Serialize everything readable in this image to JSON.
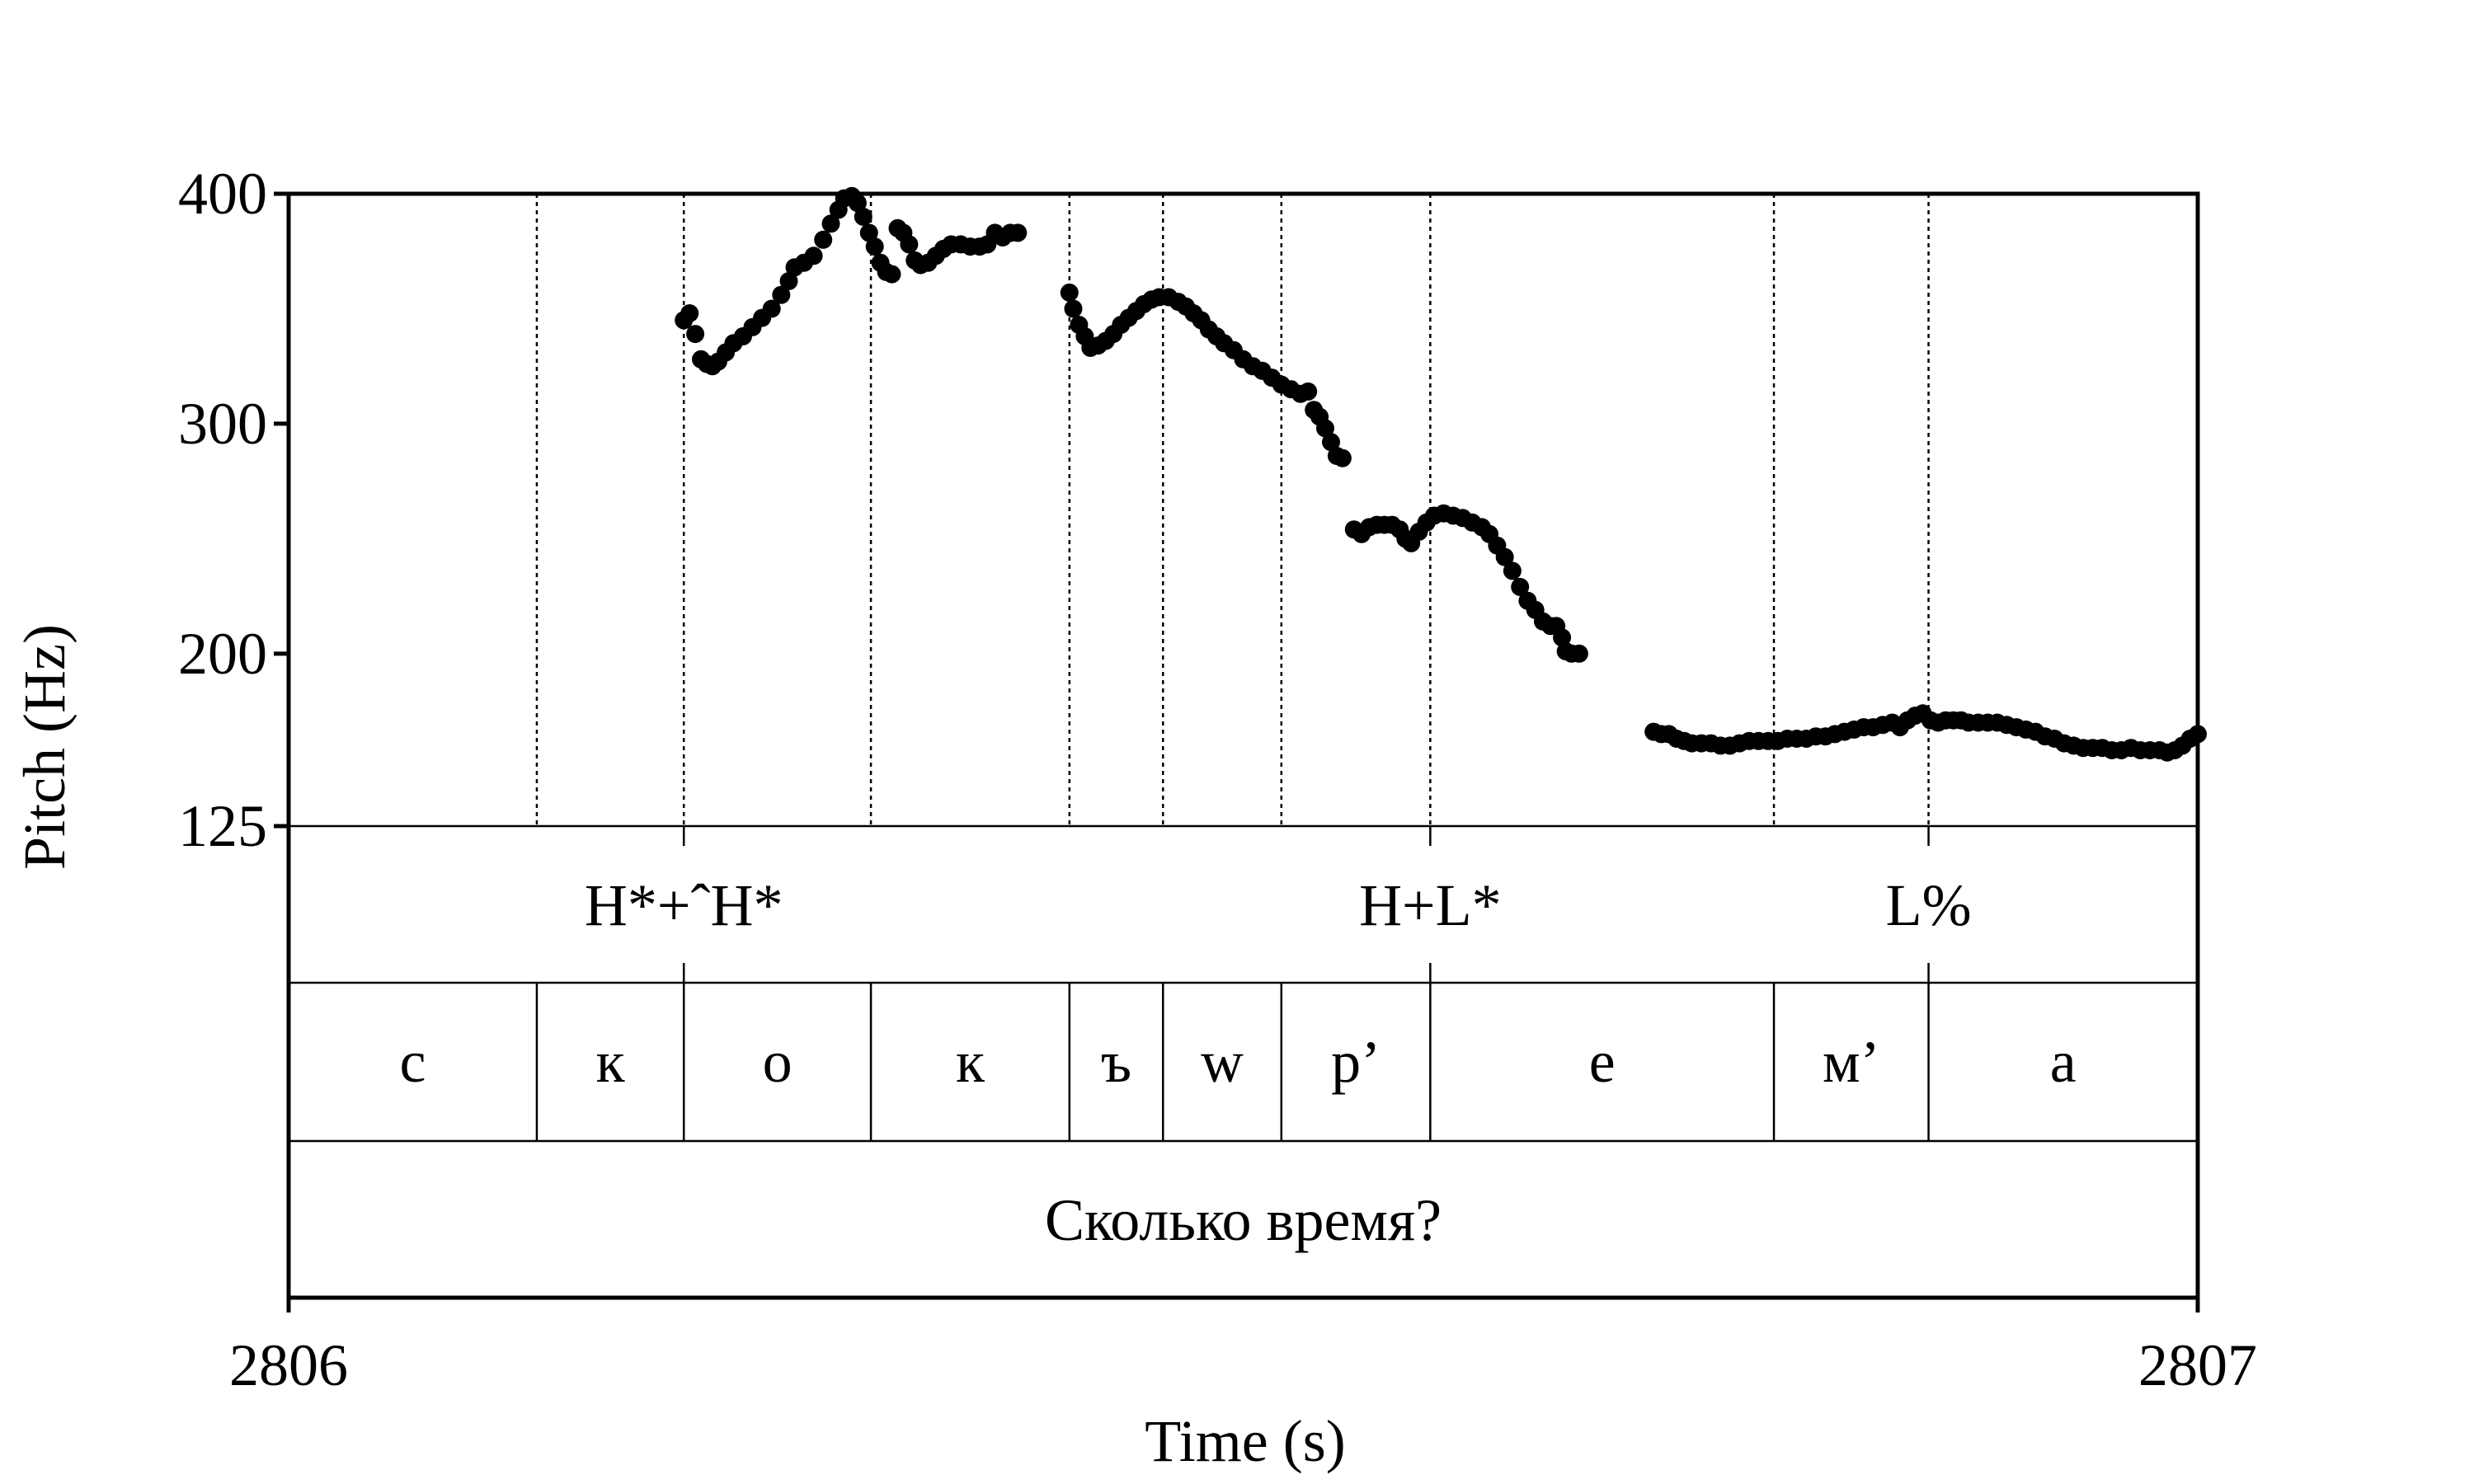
{
  "chart_data": {
    "type": "scatter",
    "xlabel": "Time (s)",
    "ylabel": "Pitch (Hz)",
    "xlim": [
      2806,
      2807
    ],
    "ylim": [
      125,
      400
    ],
    "x_ticks": [
      "2806",
      "2807"
    ],
    "y_ticks": [
      {
        "value": 400,
        "label": "400"
      },
      {
        "value": 300,
        "label": "300"
      },
      {
        "value": 200,
        "label": "200"
      },
      {
        "value": 125,
        "label": "125"
      }
    ],
    "boundaries": [
      2806.13,
      2806.207,
      2806.305,
      2806.409,
      2806.458,
      2806.52,
      2806.598,
      2806.778,
      2806.859
    ],
    "tones": [
      {
        "text": "H*+ˆH*",
        "x": 2806.207
      },
      {
        "text": "H+L*",
        "x": 2806.598
      },
      {
        "text": "L%",
        "x": 2806.859
      }
    ],
    "segments": [
      {
        "text": "с",
        "start": 2806.0,
        "end": 2806.13
      },
      {
        "text": "к",
        "start": 2806.13,
        "end": 2806.207
      },
      {
        "text": "о",
        "start": 2806.207,
        "end": 2806.305
      },
      {
        "text": "к",
        "start": 2806.305,
        "end": 2806.409
      },
      {
        "text": "ъ",
        "start": 2806.409,
        "end": 2806.458
      },
      {
        "text": "w",
        "start": 2806.458,
        "end": 2806.52
      },
      {
        "text": "р’",
        "start": 2806.52,
        "end": 2806.598
      },
      {
        "text": "е",
        "start": 2806.598,
        "end": 2806.778
      },
      {
        "text": "м’",
        "start": 2806.778,
        "end": 2806.859
      },
      {
        "text": "а",
        "start": 2806.859,
        "end": 2807.0
      }
    ],
    "utterance": "Сколько время?",
    "series": [
      {
        "points": [
          [
            2806.207,
            345
          ],
          [
            2806.21,
            348
          ],
          [
            2806.213,
            339
          ],
          [
            2806.216,
            328
          ],
          [
            2806.219,
            326
          ],
          [
            2806.222,
            325
          ],
          [
            2806.225,
            327
          ],
          [
            2806.229,
            331
          ],
          [
            2806.233,
            335
          ],
          [
            2806.238,
            338
          ],
          [
            2806.243,
            342
          ],
          [
            2806.248,
            346
          ],
          [
            2806.253,
            350
          ],
          [
            2806.258,
            356
          ],
          [
            2806.262,
            362
          ],
          [
            2806.265,
            368
          ],
          [
            2806.27,
            370
          ],
          [
            2806.275,
            373
          ],
          [
            2806.28,
            380
          ],
          [
            2806.284,
            387
          ],
          [
            2806.288,
            393
          ],
          [
            2806.291,
            398
          ],
          [
            2806.295,
            399
          ],
          [
            2806.298,
            396
          ],
          [
            2806.301,
            390
          ],
          [
            2806.304,
            383
          ],
          [
            2806.307,
            377
          ],
          [
            2806.31,
            370
          ],
          [
            2806.313,
            366
          ],
          [
            2806.316,
            365
          ],
          [
            2806.319,
            385
          ],
          [
            2806.322,
            383
          ],
          [
            2806.325,
            378
          ],
          [
            2806.328,
            371
          ],
          [
            2806.331,
            369
          ],
          [
            2806.335,
            370
          ],
          [
            2806.339,
            373
          ],
          [
            2806.343,
            376
          ],
          [
            2806.347,
            378
          ],
          [
            2806.352,
            378
          ],
          [
            2806.357,
            377
          ],
          [
            2806.362,
            377
          ],
          [
            2806.366,
            378
          ],
          [
            2806.37,
            383
          ],
          [
            2806.374,
            381
          ],
          [
            2806.378,
            383
          ],
          [
            2806.382,
            383
          ]
        ]
      },
      {
        "points": [
          [
            2806.409,
            357
          ],
          [
            2806.411,
            350
          ],
          [
            2806.414,
            343
          ],
          [
            2806.417,
            338
          ],
          [
            2806.42,
            333
          ],
          [
            2806.424,
            334
          ],
          [
            2806.428,
            336
          ],
          [
            2806.432,
            339
          ],
          [
            2806.436,
            343
          ],
          [
            2806.44,
            346
          ],
          [
            2806.444,
            349
          ],
          [
            2806.448,
            352
          ],
          [
            2806.452,
            354
          ],
          [
            2806.456,
            355
          ],
          [
            2806.461,
            355
          ],
          [
            2806.466,
            353
          ],
          [
            2806.47,
            351
          ],
          [
            2806.474,
            348
          ],
          [
            2806.478,
            345
          ],
          [
            2806.482,
            341
          ],
          [
            2806.486,
            338
          ],
          [
            2806.49,
            335
          ],
          [
            2806.495,
            332
          ],
          [
            2806.5,
            328
          ],
          [
            2806.505,
            325
          ],
          [
            2806.51,
            323
          ],
          [
            2806.515,
            320
          ],
          [
            2806.52,
            317
          ],
          [
            2806.525,
            315
          ],
          [
            2806.53,
            313
          ],
          [
            2806.534,
            314
          ],
          [
            2806.537,
            306
          ],
          [
            2806.54,
            303
          ],
          [
            2806.543,
            298
          ],
          [
            2806.546,
            292
          ],
          [
            2806.549,
            286
          ],
          [
            2806.552,
            285
          ]
        ]
      },
      {
        "points": [
          [
            2806.558,
            254
          ],
          [
            2806.562,
            252
          ],
          [
            2806.566,
            255
          ],
          [
            2806.57,
            256
          ],
          [
            2806.574,
            256
          ],
          [
            2806.578,
            256
          ],
          [
            2806.582,
            254
          ],
          [
            2806.585,
            250
          ],
          [
            2806.588,
            248
          ],
          [
            2806.592,
            253
          ],
          [
            2806.596,
            257
          ],
          [
            2806.6,
            260
          ],
          [
            2806.605,
            261
          ],
          [
            2806.61,
            260
          ],
          [
            2806.615,
            259
          ],
          [
            2806.62,
            257
          ],
          [
            2806.625,
            255
          ],
          [
            2806.629,
            252
          ],
          [
            2806.633,
            247
          ],
          [
            2806.637,
            242
          ],
          [
            2806.641,
            236
          ],
          [
            2806.645,
            229
          ],
          [
            2806.649,
            223
          ],
          [
            2806.653,
            219
          ],
          [
            2806.657,
            214
          ],
          [
            2806.661,
            212
          ],
          [
            2806.664,
            212
          ],
          [
            2806.667,
            207
          ],
          [
            2806.669,
            201
          ],
          [
            2806.672,
            200
          ],
          [
            2806.676,
            200
          ]
        ]
      },
      {
        "points": [
          [
            2806.715,
            166
          ],
          [
            2806.719,
            165
          ],
          [
            2806.723,
            165
          ],
          [
            2806.727,
            163
          ],
          [
            2806.731,
            162
          ],
          [
            2806.735,
            161
          ],
          [
            2806.74,
            161
          ],
          [
            2806.745,
            161
          ],
          [
            2806.75,
            160
          ],
          [
            2806.755,
            160
          ],
          [
            2806.76,
            161
          ],
          [
            2806.765,
            162
          ],
          [
            2806.77,
            162
          ],
          [
            2806.775,
            162
          ],
          [
            2806.78,
            162
          ],
          [
            2806.785,
            163
          ],
          [
            2806.79,
            163
          ],
          [
            2806.795,
            163
          ],
          [
            2806.8,
            164
          ],
          [
            2806.805,
            164
          ],
          [
            2806.81,
            165
          ],
          [
            2806.815,
            166
          ],
          [
            2806.82,
            167
          ],
          [
            2806.825,
            168
          ],
          [
            2806.83,
            168
          ],
          [
            2806.835,
            169
          ],
          [
            2806.84,
            170
          ],
          [
            2806.844,
            168
          ],
          [
            2806.848,
            171
          ],
          [
            2806.852,
            173
          ],
          [
            2806.856,
            174
          ],
          [
            2806.86,
            171
          ],
          [
            2806.864,
            170
          ],
          [
            2806.868,
            171
          ],
          [
            2806.872,
            171
          ],
          [
            2806.876,
            171
          ],
          [
            2806.88,
            170
          ],
          [
            2806.885,
            170
          ],
          [
            2806.89,
            170
          ],
          [
            2806.895,
            170
          ],
          [
            2806.9,
            169
          ],
          [
            2806.905,
            168
          ],
          [
            2806.91,
            167
          ],
          [
            2806.915,
            166
          ],
          [
            2806.92,
            164
          ],
          [
            2806.925,
            163
          ],
          [
            2806.93,
            161
          ],
          [
            2806.935,
            160
          ],
          [
            2806.94,
            159
          ],
          [
            2806.945,
            159
          ],
          [
            2806.95,
            159
          ],
          [
            2806.955,
            158
          ],
          [
            2806.96,
            158
          ],
          [
            2806.965,
            159
          ],
          [
            2806.97,
            158
          ],
          [
            2806.975,
            158
          ],
          [
            2806.98,
            158
          ],
          [
            2806.984,
            157
          ],
          [
            2806.988,
            158
          ],
          [
            2806.992,
            160
          ],
          [
            2806.996,
            163
          ],
          [
            2807.0,
            165
          ]
        ]
      }
    ],
    "grid": false
  }
}
